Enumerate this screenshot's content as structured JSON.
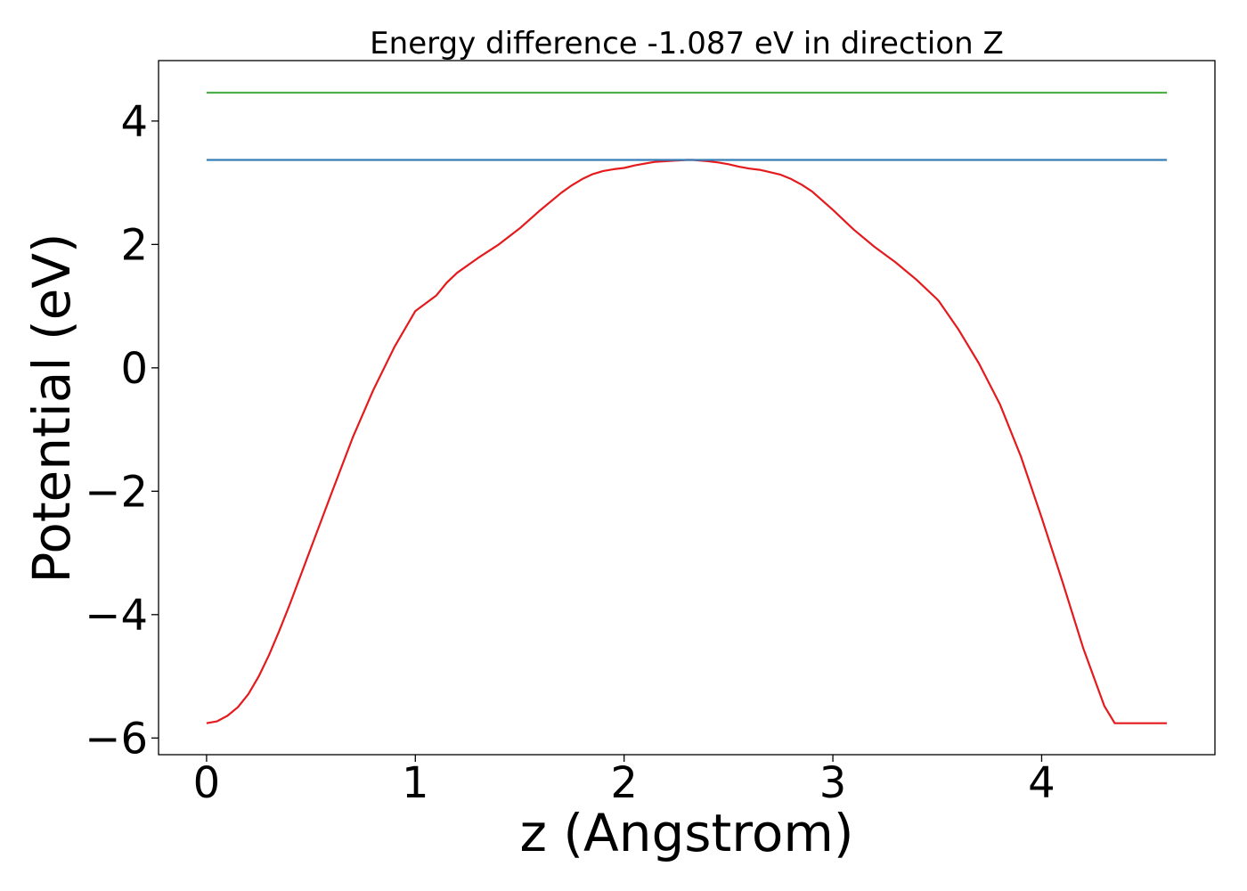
{
  "chart_data": {
    "type": "line",
    "title": "Energy difference -1.087 eV in direction Z",
    "xlabel": "z (Angstrom)",
    "ylabel": "Potential (eV)",
    "xlim": [
      -0.23,
      4.83
    ],
    "ylim": [
      -6.27,
      4.98
    ],
    "xticks": [
      0,
      1,
      2,
      3,
      4
    ],
    "xtick_labels": [
      "0",
      "1",
      "2",
      "3",
      "4"
    ],
    "yticks": [
      -6,
      -4,
      -2,
      0,
      2,
      4
    ],
    "ytick_labels": [
      "−6",
      "−4",
      "−2",
      "0",
      "2",
      "4"
    ],
    "grid": false,
    "legend": "none",
    "series": [
      {
        "color": "#e41a1c",
        "x": [
          0,
          0.05,
          0.1,
          0.15,
          0.2,
          0.25,
          0.3,
          0.35,
          0.4,
          0.5,
          0.6,
          0.7,
          0.8,
          0.9,
          1.0,
          1.1,
          1.15,
          1.2,
          1.3,
          1.4,
          1.5,
          1.6,
          1.7,
          1.75,
          1.8,
          1.85,
          1.9,
          1.95,
          2.0,
          2.05,
          2.1,
          2.15,
          2.2,
          2.25,
          2.3,
          2.33,
          2.4,
          2.45,
          2.5,
          2.55,
          2.6,
          2.65,
          2.7,
          2.75,
          2.8,
          2.85,
          2.9,
          2.95,
          3.0,
          3.1,
          3.2,
          3.3,
          3.4,
          3.5,
          3.51,
          3.6,
          3.7,
          3.8,
          3.9,
          4.0,
          4.1,
          4.2,
          4.3,
          4.35,
          4.4,
          4.45,
          4.5,
          4.55,
          4.6
        ],
        "y": [
          -5.76,
          -5.73,
          -5.64,
          -5.5,
          -5.29,
          -5.0,
          -4.65,
          -4.25,
          -3.82,
          -2.92,
          -2.02,
          -1.13,
          -0.35,
          0.34,
          0.92,
          1.17,
          1.38,
          1.54,
          1.78,
          2.0,
          2.26,
          2.56,
          2.84,
          2.96,
          3.06,
          3.14,
          3.19,
          3.22,
          3.24,
          3.28,
          3.31,
          3.34,
          3.35,
          3.36,
          3.37,
          3.37,
          3.35,
          3.33,
          3.3,
          3.26,
          3.23,
          3.21,
          3.17,
          3.13,
          3.06,
          2.97,
          2.86,
          2.71,
          2.56,
          2.24,
          1.96,
          1.71,
          1.43,
          1.11,
          1.07,
          0.63,
          0.07,
          -0.59,
          -1.43,
          -2.43,
          -3.47,
          -4.55,
          -5.48,
          -5.76,
          -5.76,
          -5.76,
          -5.76,
          -5.76,
          -5.76
        ]
      },
      {
        "color": "#377eb8",
        "x": [
          0,
          4.6
        ],
        "y": [
          3.37,
          3.37
        ]
      },
      {
        "color": "#4daf4a",
        "x": [
          0,
          4.6
        ],
        "y": [
          4.46,
          4.46
        ]
      }
    ]
  }
}
